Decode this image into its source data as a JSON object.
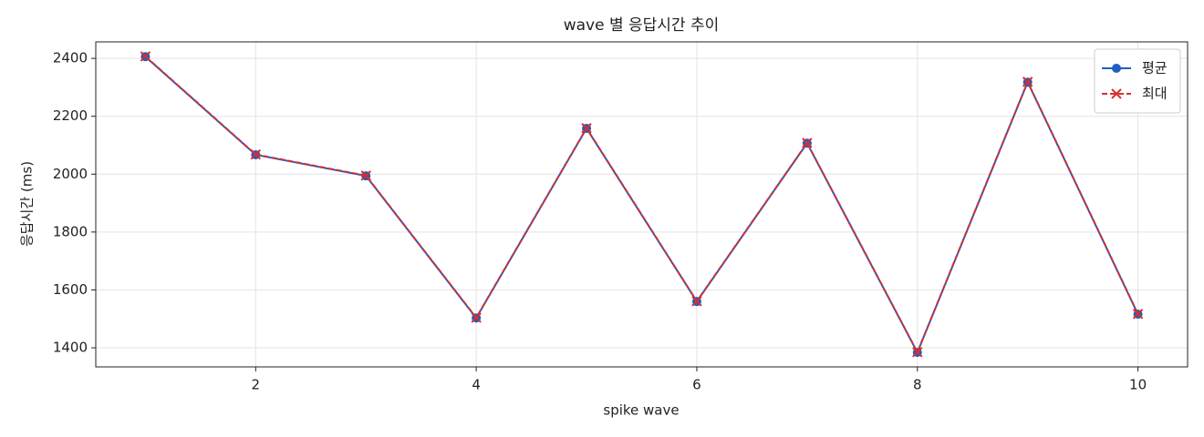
{
  "chart_data": {
    "type": "line",
    "title": "wave 별 응답시간 추이",
    "x_label": "spike wave",
    "y_label": "응답시간 (ms)",
    "x": [
      1,
      2,
      3,
      4,
      5,
      6,
      7,
      8,
      9,
      10
    ],
    "series": [
      {
        "name": "평균",
        "color": "#1f5fbf",
        "marker": "o",
        "linestyle": "solid",
        "values": [
          2406,
          2067,
          1994,
          1503,
          2158,
          1560,
          2107,
          1384,
          2318,
          1516
        ]
      },
      {
        "name": "최대",
        "color": "#d62f2f",
        "marker": "x",
        "linestyle": "dashed",
        "values": [
          2407,
          2068,
          1995,
          1504,
          2159,
          1561,
          2108,
          1385,
          2319,
          1517
        ]
      }
    ],
    "xlim": [
      0.55,
      10.45
    ],
    "ylim": [
      1334,
      2457
    ],
    "xticks": [
      2,
      4,
      6,
      8,
      10
    ],
    "yticks": [
      1400,
      1600,
      1800,
      2000,
      2200,
      2400
    ],
    "grid": true,
    "legend": "upper right"
  }
}
